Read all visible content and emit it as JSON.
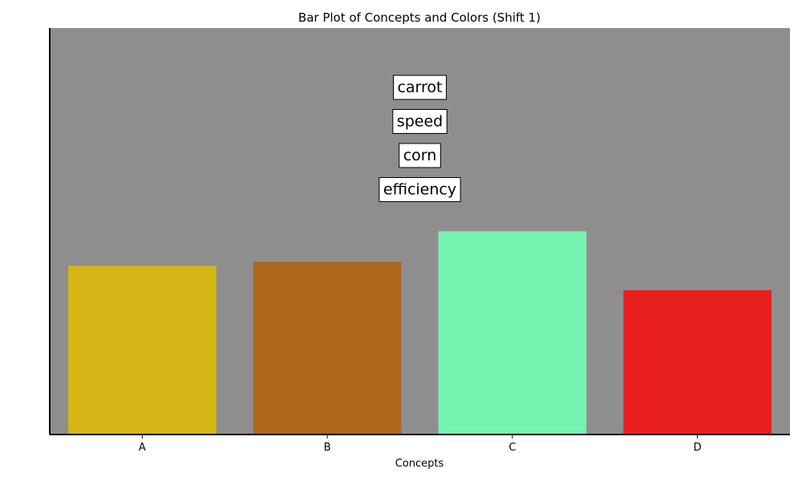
{
  "chart_data": {
    "type": "bar",
    "title": "Bar Plot of Concepts and Colors (Shift 1)",
    "xlabel": "Concepts",
    "ylabel": "",
    "categories": [
      "A",
      "B",
      "C",
      "D"
    ],
    "values": [
      41.5,
      42.5,
      50,
      35.5
    ],
    "colors": [
      "#d6b614",
      "#ac671c",
      "#74f4b0",
      "#e81f1e"
    ],
    "ylim": [
      0,
      100
    ],
    "plot_background": "#8e8e8e",
    "grid": false,
    "y_ticks_visible": false,
    "annotations": [
      "carrot",
      "speed",
      "corn",
      "efficiency"
    ]
  }
}
